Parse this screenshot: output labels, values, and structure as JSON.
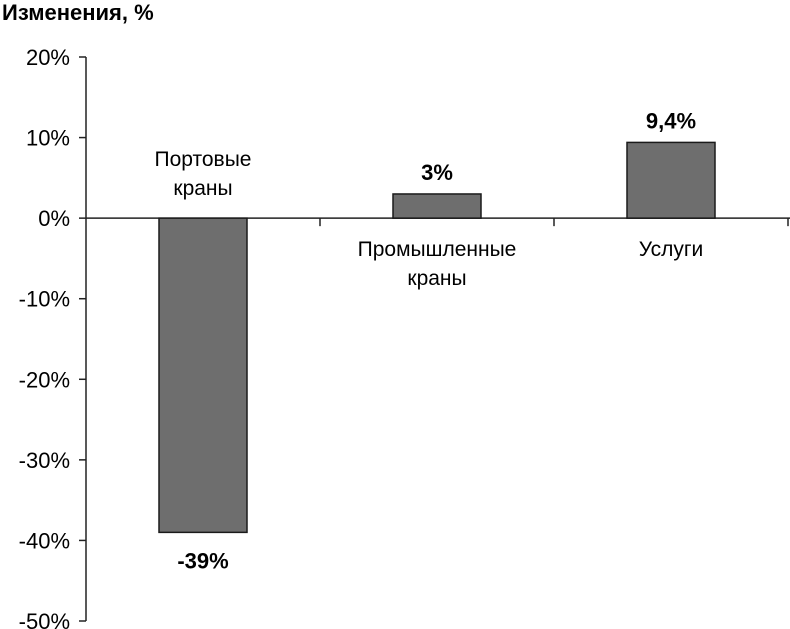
{
  "chart_data": {
    "type": "bar",
    "title": "Изменения, %",
    "xlabel": "",
    "ylabel": "",
    "ylim": [
      -50,
      20
    ],
    "yticks": [
      20,
      10,
      0,
      -10,
      -20,
      -30,
      -40,
      -50
    ],
    "ytick_labels": [
      "20%",
      "10%",
      "0%",
      "-10%",
      "-20%",
      "-30%",
      "-40%",
      "-50%"
    ],
    "categories": [
      [
        "Портовые",
        "краны"
      ],
      [
        "Промышленные",
        "краны"
      ],
      [
        "Услуги"
      ]
    ],
    "values": [
      -39,
      3,
      9.4
    ],
    "data_labels": [
      "-39%",
      "3%",
      "9,4%"
    ],
    "grid": false,
    "bar_color": "#6e6e6e",
    "bar_stroke": "#1a1a1a"
  }
}
